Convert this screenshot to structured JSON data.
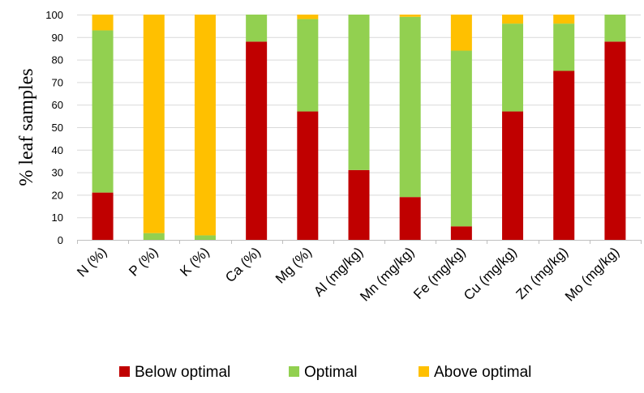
{
  "chart_data": {
    "type": "bar",
    "stacked": true,
    "title": "",
    "xlabel": "",
    "ylabel": "% leaf samples",
    "ylim": [
      0,
      100
    ],
    "yticks": [
      0,
      10,
      20,
      30,
      40,
      50,
      60,
      70,
      80,
      90,
      100
    ],
    "grid": true,
    "legend_position": "bottom",
    "categories": [
      "N (%)",
      "P (%)",
      "K (%)",
      "Ca (%)",
      "Mg (%)",
      "Al (mg/kg)",
      "Mn (mg/kg)",
      "Fe (mg/kg)",
      "Cu (mg/kg)",
      "Zn (mg/kg)",
      "Mo (mg/kg)"
    ],
    "series": [
      {
        "name": "Below optimal",
        "color": "#c00000",
        "values": [
          21,
          0,
          0,
          88,
          57,
          31,
          19,
          6,
          57,
          75,
          88
        ]
      },
      {
        "name": "Optimal",
        "color": "#92d050",
        "values": [
          72,
          3,
          2,
          12,
          41,
          69,
          80,
          78,
          39,
          21,
          12
        ]
      },
      {
        "name": "Above optimal",
        "color": "#ffc000",
        "values": [
          7,
          97,
          98,
          0,
          2,
          0,
          1,
          16,
          4,
          4,
          0
        ]
      }
    ]
  }
}
